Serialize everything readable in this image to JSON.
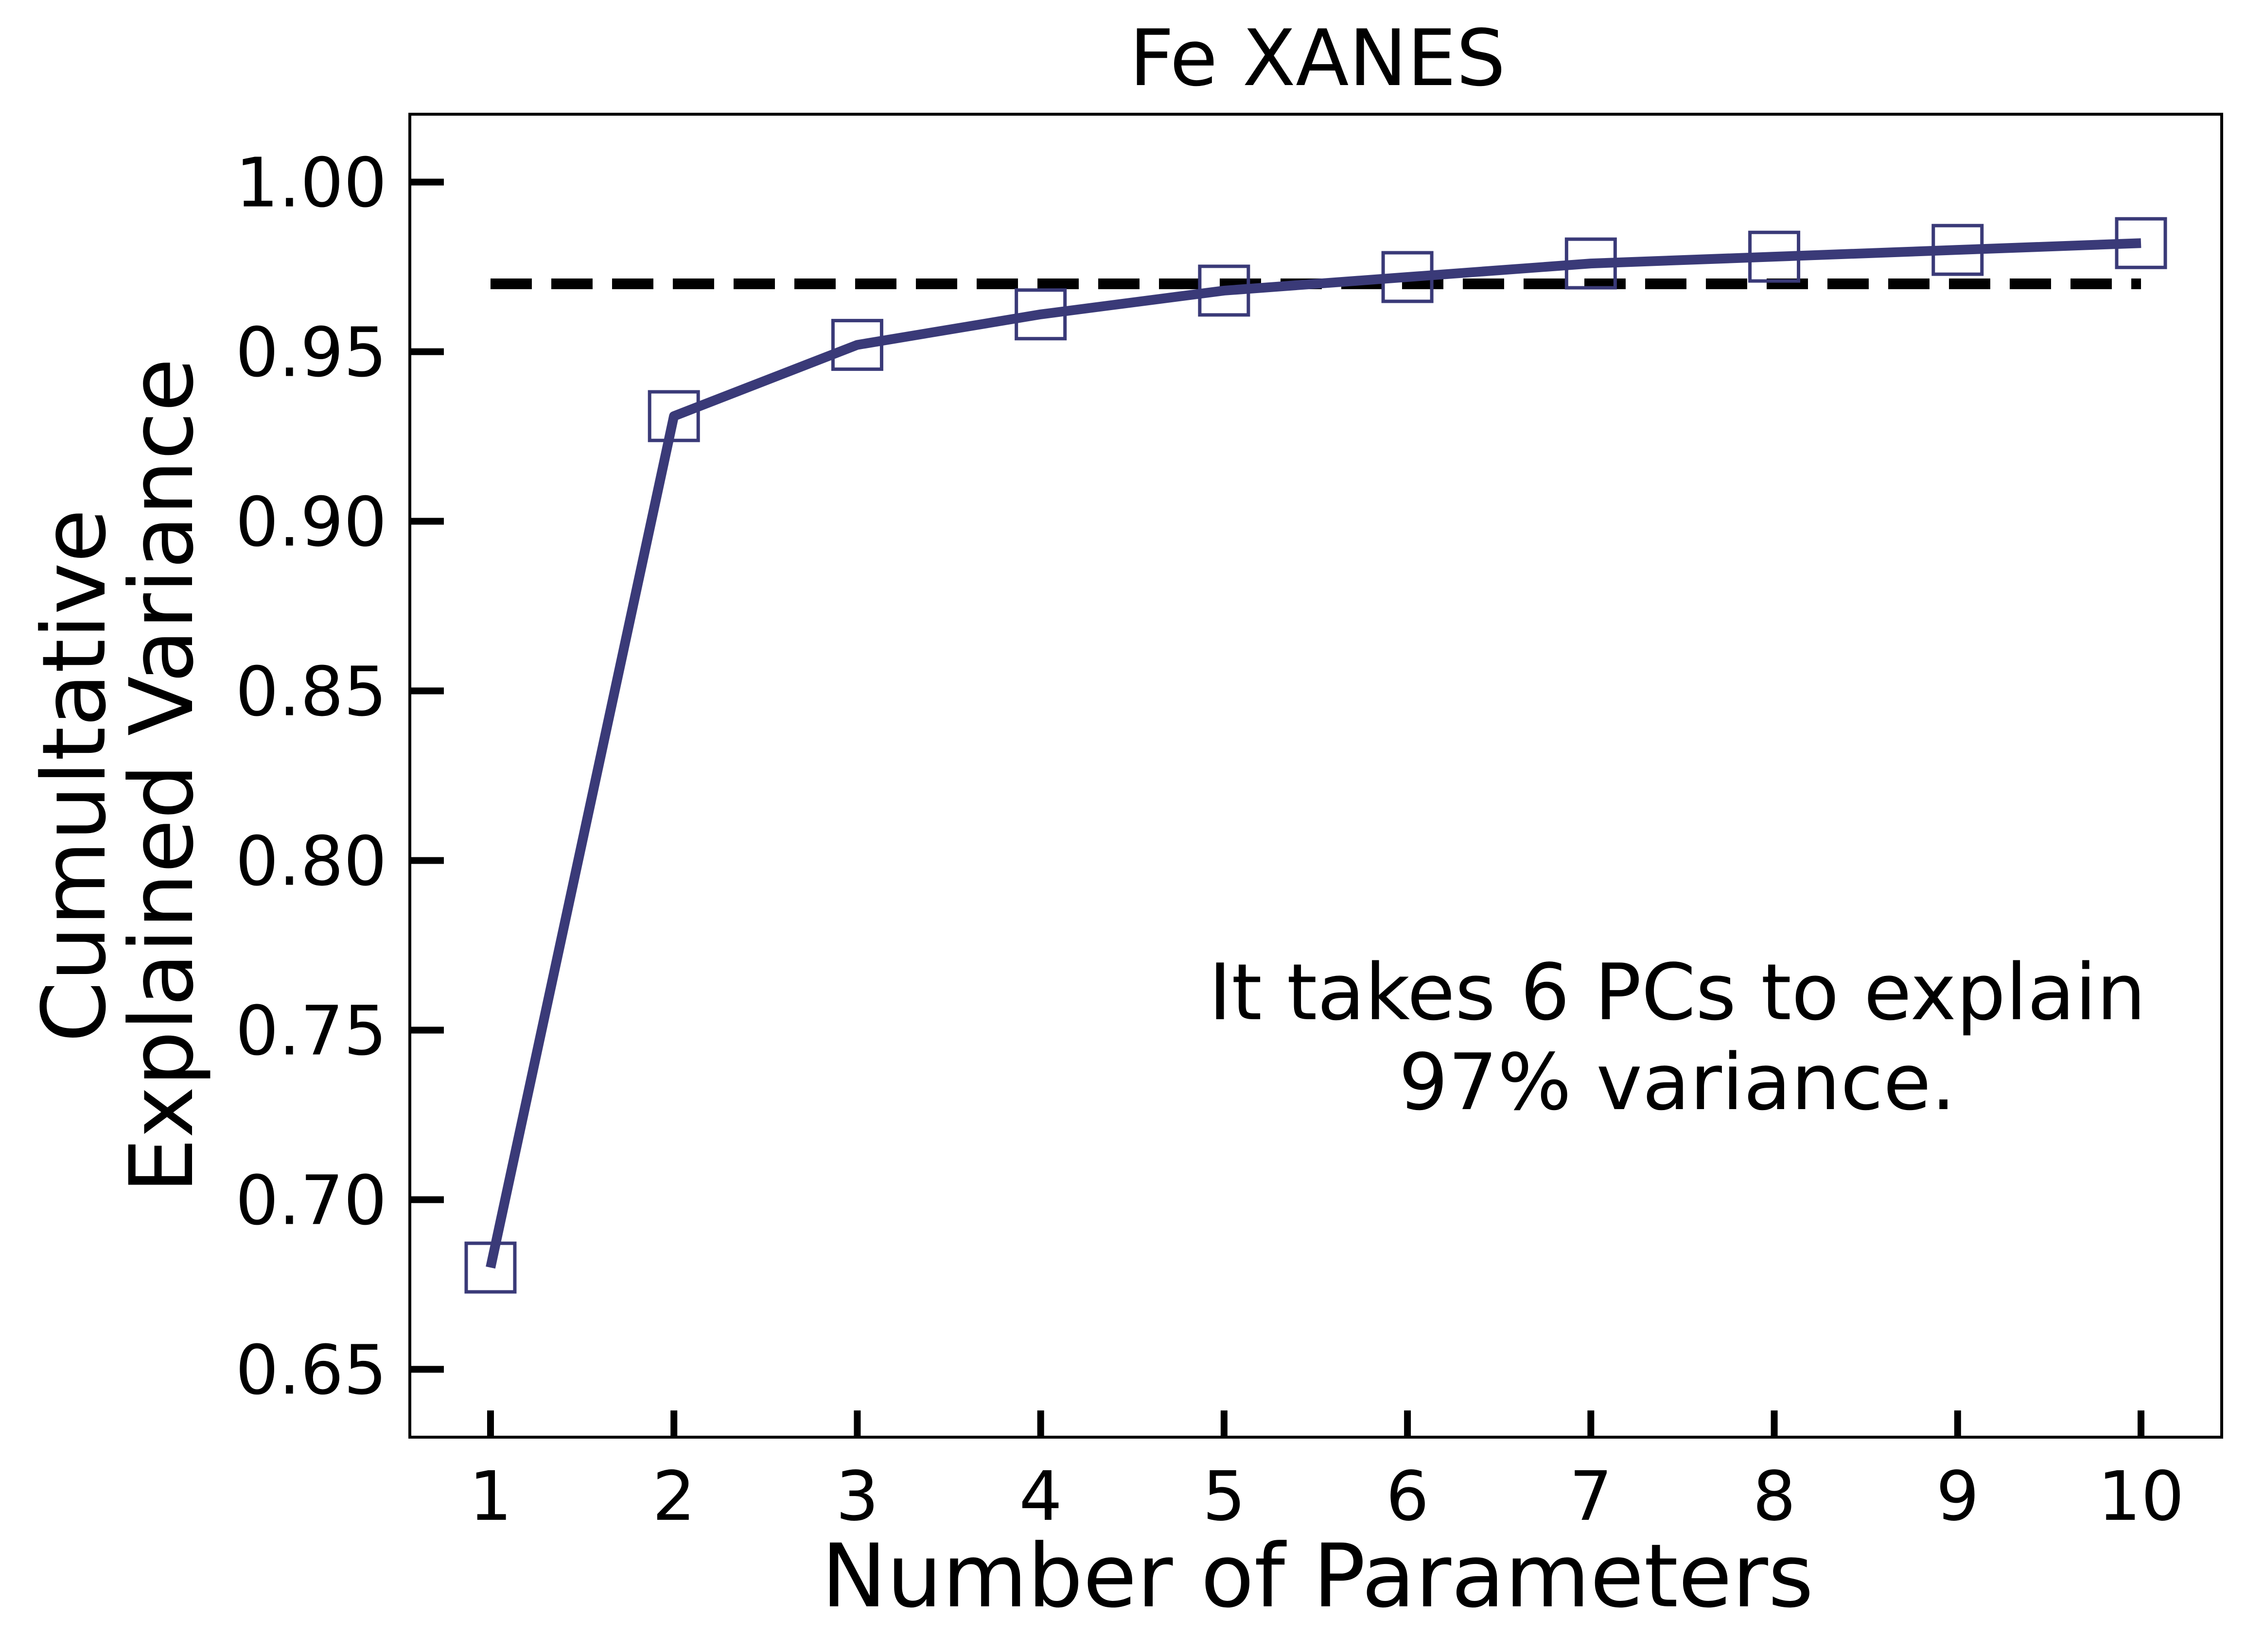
{
  "chart_data": {
    "type": "line",
    "title": "Fe XANES",
    "xlabel": "Number of Parameters",
    "ylabel_lines": [
      "Cumultative",
      "Explained Variance"
    ],
    "xlim": [
      0.56,
      10.44
    ],
    "ylim": [
      0.63,
      1.02
    ],
    "x_ticks": [
      1,
      2,
      3,
      4,
      5,
      6,
      7,
      8,
      9,
      10
    ],
    "y_ticks": [
      0.65,
      0.7,
      0.75,
      0.8,
      0.85,
      0.9,
      0.95,
      1.0
    ],
    "y_tick_labels": [
      "0.65",
      "0.70",
      "0.75",
      "0.80",
      "0.85",
      "0.90",
      "0.95",
      "1.00"
    ],
    "series": [
      {
        "x": [
          1,
          2,
          3,
          4,
          5,
          6,
          7,
          8,
          9,
          10
        ],
        "values": [
          0.68,
          0.931,
          0.952,
          0.961,
          0.968,
          0.972,
          0.976,
          0.978,
          0.98,
          0.982
        ],
        "color": "#3a3a78",
        "marker": "square-open"
      }
    ],
    "threshold": {
      "y": 0.97,
      "x_start": 1,
      "x_end": 10,
      "color": "#000000",
      "style": "dashed"
    },
    "annotation_lines": [
      "It takes 6 PCs to explain",
      "97% variance."
    ],
    "grid": false,
    "legend": "none"
  }
}
